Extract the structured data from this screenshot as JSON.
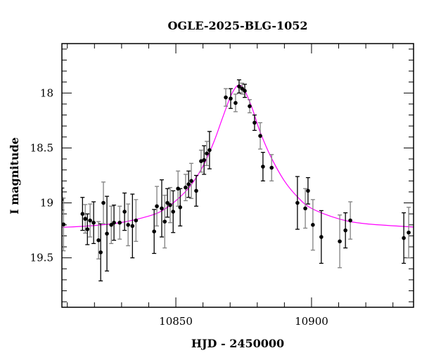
{
  "chart_data": {
    "type": "scatter",
    "title": "OGLE-2025-BLG-1052",
    "xlabel": "HJD - 2450000",
    "ylabel": "I magnitude",
    "xlim": [
      10808.0,
      10937.6
    ],
    "ylim": [
      19.95,
      17.55
    ],
    "y_inverted": true,
    "x_ticks": [
      10850,
      10900
    ],
    "x_tick_labels": [
      "10850",
      "10900"
    ],
    "x_minor_step": 10,
    "y_ticks": [
      18,
      18.5,
      19,
      19.5
    ],
    "y_tick_labels": [
      "18",
      "18.5",
      "19",
      "19.5"
    ],
    "y_minor_step": 0.1,
    "grid": false,
    "colors": {
      "points": "#000000",
      "errorbar_alt": "#808080",
      "model": "#ff00ff"
    },
    "series": [
      {
        "kind": "data",
        "x": [
          10808.1,
          10808.6,
          10815.6,
          10816.6,
          10817.4,
          10818.4,
          10819.7,
          10821.5,
          10822.3,
          10823.3,
          10824.6,
          10826.2,
          10827.2,
          10829.3,
          10831.1,
          10832.4,
          10834.0,
          10835.3,
          10842.0,
          10843.0,
          10844.8,
          10845.9,
          10846.9,
          10847.9,
          10849.0,
          10850.8,
          10851.6,
          10853.6,
          10854.7,
          10855.7,
          10857.5,
          10859.3,
          10860.4,
          10861.4,
          10862.4,
          10868.4,
          10870.2,
          10872.0,
          10873.3,
          10874.4,
          10875.4,
          10877.2,
          10879.0,
          10881.1,
          10882.1,
          10885.3,
          10894.8,
          10897.7,
          10898.7,
          10900.5,
          10903.6,
          10910.4,
          10912.5,
          10914.3,
          10934.0,
          10935.8
        ],
        "y": [
          18.965,
          19.196,
          19.1,
          19.145,
          19.24,
          19.16,
          19.18,
          19.34,
          19.45,
          19.0,
          19.28,
          19.2,
          19.18,
          19.18,
          19.08,
          19.2,
          19.21,
          19.16,
          19.26,
          19.03,
          19.05,
          19.17,
          19.0,
          19.02,
          19.08,
          18.87,
          19.04,
          18.86,
          18.83,
          18.8,
          18.89,
          18.62,
          18.61,
          18.55,
          18.52,
          18.04,
          18.05,
          18.09,
          17.94,
          17.96,
          17.98,
          18.12,
          18.27,
          18.39,
          18.67,
          18.68,
          19.0,
          19.05,
          18.89,
          19.2,
          19.31,
          19.35,
          19.25,
          19.16,
          19.32,
          19.27
        ],
        "yerr": [
          0.1,
          0.24,
          0.15,
          0.13,
          0.14,
          0.15,
          0.19,
          0.17,
          0.26,
          0.19,
          0.34,
          0.17,
          0.16,
          0.15,
          0.17,
          0.19,
          0.29,
          0.19,
          0.2,
          0.18,
          0.26,
          0.24,
          0.13,
          0.16,
          0.19,
          0.16,
          0.17,
          0.12,
          0.12,
          0.16,
          0.14,
          0.1,
          0.13,
          0.11,
          0.17,
          0.08,
          0.09,
          0.08,
          0.06,
          0.05,
          0.06,
          0.06,
          0.07,
          0.12,
          0.13,
          0.12,
          0.24,
          0.18,
          0.12,
          0.23,
          0.24,
          0.24,
          0.16,
          0.17,
          0.23,
          0.23
        ]
      },
      {
        "kind": "model",
        "x": [
          10808,
          10820,
          10830,
          10840,
          10845,
          10850,
          10855,
          10860,
          10864,
          10867,
          10870,
          10872,
          10873.3,
          10875,
          10878,
          10881,
          10885,
          10890,
          10895,
          10900,
          10910,
          10920,
          10938
        ],
        "y": [
          19.223,
          19.206,
          19.178,
          19.12,
          19.07,
          18.98,
          18.856,
          18.666,
          18.445,
          18.24,
          18.04,
          17.95,
          17.93,
          17.96,
          18.13,
          18.35,
          18.58,
          18.8,
          18.95,
          19.05,
          19.145,
          19.19,
          19.22
        ]
      }
    ]
  }
}
